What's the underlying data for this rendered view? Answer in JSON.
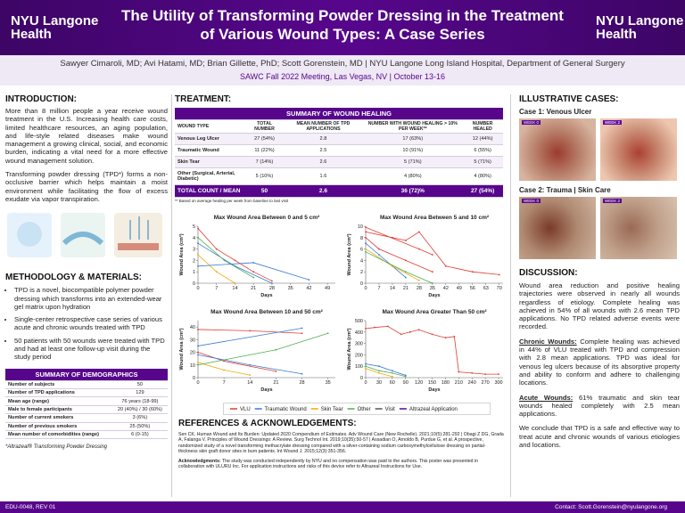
{
  "header": {
    "title": "The Utility of Transforming Powder Dressing in the Treatment of Various Wound Types: A Case Series",
    "logo_line1": "NYU Langone",
    "logo_line2": "Health",
    "authors": "Sawyer Cimaroli, MD; Avi Hatami, MD; Brian Gillette, PhD; Scott Gorenstein, MD | NYU Langone Long Island Hospital, Department of General Surgery",
    "meeting": "SAWC Fall 2022 Meeting, Las Vegas, NV | October 13-16"
  },
  "introduction": {
    "heading": "INTRODUCTION:",
    "paragraphs": [
      "More than 8 million people a year receive wound treatment in the U.S. Increasing health care costs, limited healthcare resources, an aging population, and life-style related diseases make wound management a growing clinical, social, and economic burden, indicating a vital need for a more effective wound management solution.",
      "Transforming powder dressing (TPD*) forms a non-occlusive barrier which helps maintain a moist environment while facilitating the flow of excess exudate via vapor transpiration."
    ]
  },
  "methodology": {
    "heading": "METHODOLOGY & MATERIALS:",
    "bullets": [
      "TPD is a novel, biocompatible polymer powder dressing which transforms into an extended-wear gel matrix upon hydration",
      "Single-center retrospective case series of various acute and chronic wounds treated with TPD",
      "50 patients with 50 wounds were treated with TPD and had at least one follow-up visit during the study period"
    ]
  },
  "demographics": {
    "title": "SUMMARY OF DEMOGRAPHICS",
    "rows": [
      [
        "Number of subjects",
        "50"
      ],
      [
        "Number of TPD applications",
        "129"
      ],
      [
        "Mean age (range)",
        "76 years (18-99)"
      ],
      [
        "Male to female participants",
        "20 (40%) / 30 (60%)"
      ],
      [
        "Number of current smokers",
        "3 (6%)"
      ],
      [
        "Number of previous smokers",
        "25 (50%)"
      ],
      [
        "Mean number of comorbidities (range)",
        "6 (0-15)"
      ]
    ],
    "footnote": "*Altrazeal® Transforming Powder Dressing"
  },
  "treatment": {
    "heading": "TREATMENT:",
    "title": "SUMMARY OF WOUND HEALING",
    "columns": [
      "WOUND TYPE",
      "TOTAL NUMBER",
      "MEAN NUMBER OF TPD APPLICATIONS",
      "NUMBER WITH WOUND HEALING > 10% PER WEEK**",
      "NUMBER HEALED"
    ],
    "rows": [
      [
        "Venous Leg Ulcer",
        "27 (54%)",
        "2.8",
        "17 (63%)",
        "12 (44%)"
      ],
      [
        "Traumatic Wound",
        "11 (22%)",
        "2.5",
        "10 (91%)",
        "6 (55%)"
      ],
      [
        "Skin Tear",
        "7 (14%)",
        "2.6",
        "5 (71%)",
        "5 (71%)"
      ],
      [
        "Other (Surgical, Arterial, Diabetic)",
        "5 (10%)",
        "1.6",
        "4 (80%)",
        "4 (80%)"
      ]
    ],
    "total": [
      "TOTAL COUNT / MEAN",
      "50",
      "2.6",
      "36 (72)%",
      "27 (54%)"
    ],
    "footnote": "** Based on average healing per week from baseline to last visit"
  },
  "chart_data": [
    {
      "type": "line",
      "title": "Max Wound Area Between 0 and 5 cm²",
      "x_label": "Days",
      "y_label": "Wound Area (cm²)",
      "xlim": [
        0,
        52
      ],
      "xticks": [
        0,
        7,
        14,
        21,
        28,
        35,
        42,
        49
      ],
      "ylim": [
        0,
        5
      ],
      "yticks": [
        0,
        1,
        2,
        3,
        4,
        5
      ],
      "series": [
        {
          "color": "#e03c31",
          "x": [
            0,
            7,
            14,
            21,
            28
          ],
          "values": [
            4.8,
            3,
            2,
            1,
            0.2
          ]
        },
        {
          "color": "#3a7bd5",
          "x": [
            0,
            14,
            28
          ],
          "values": [
            3.5,
            1.5,
            0
          ]
        },
        {
          "color": "#f2a900",
          "x": [
            0,
            7,
            14
          ],
          "values": [
            2.5,
            1,
            0
          ]
        },
        {
          "color": "#4caf50",
          "x": [
            0,
            10,
            21
          ],
          "values": [
            4,
            2,
            0.5
          ]
        },
        {
          "color": "#3a7bd5",
          "x": [
            0,
            21,
            42
          ],
          "values": [
            1.5,
            1.8,
            0.3
          ]
        }
      ]
    },
    {
      "type": "line",
      "title": "Max Wound Area Between 5 and 10 cm²",
      "x_label": "Days",
      "y_label": "Wound Area (cm²)",
      "xlim": [
        0,
        72
      ],
      "xticks": [
        0,
        7,
        14,
        21,
        28,
        35,
        42,
        49,
        56,
        63,
        70
      ],
      "ylim": [
        0,
        10
      ],
      "yticks": [
        0,
        2,
        4,
        6,
        8,
        10
      ],
      "series": [
        {
          "color": "#e03c31",
          "x": [
            0,
            14,
            21,
            28,
            42,
            56,
            70
          ],
          "values": [
            9,
            8,
            7.5,
            9,
            3,
            2,
            1.5
          ]
        },
        {
          "color": "#e03c31",
          "x": [
            0,
            7,
            21,
            35
          ],
          "values": [
            8,
            6,
            4,
            2
          ]
        },
        {
          "color": "#3a7bd5",
          "x": [
            0,
            7,
            14,
            21
          ],
          "values": [
            7,
            5,
            3,
            1
          ]
        },
        {
          "color": "#f2a900",
          "x": [
            0,
            14,
            28
          ],
          "values": [
            6,
            3,
            0.5
          ]
        },
        {
          "color": "#4caf50",
          "x": [
            0,
            21,
            35
          ],
          "values": [
            5.5,
            2,
            0
          ]
        },
        {
          "color": "#e03c31",
          "x": [
            0,
            28,
            35
          ],
          "values": [
            9.8,
            6,
            5
          ]
        }
      ]
    },
    {
      "type": "line",
      "title": "Max Wound Area Between 10 and 50 cm²",
      "x_label": "Days",
      "y_label": "Wound Area (cm²)",
      "xlim": [
        0,
        37
      ],
      "xticks": [
        0,
        7,
        14,
        21,
        28,
        35
      ],
      "ylim": [
        0,
        45
      ],
      "yticks": [
        0,
        10,
        20,
        30,
        40
      ],
      "series": [
        {
          "color": "#e03c31",
          "x": [
            0,
            14,
            28
          ],
          "values": [
            38,
            37,
            35
          ]
        },
        {
          "color": "#e03c31",
          "x": [
            0,
            7,
            21
          ],
          "values": [
            20,
            13,
            5
          ]
        },
        {
          "color": "#3a7bd5",
          "x": [
            0,
            14,
            28
          ],
          "values": [
            18,
            10,
            3
          ]
        },
        {
          "color": "#f2a900",
          "x": [
            0,
            7,
            14
          ],
          "values": [
            12,
            6,
            2
          ]
        },
        {
          "color": "#4caf50",
          "x": [
            0,
            21,
            35
          ],
          "values": [
            10,
            22,
            35
          ]
        },
        {
          "color": "#3a7bd5",
          "x": [
            0,
            28
          ],
          "values": [
            25,
            39
          ]
        }
      ]
    },
    {
      "type": "line",
      "title": "Max Wound Area Greater Than 50 cm²",
      "x_label": "Days",
      "y_label": "Wound Area (cm²)",
      "xlim": [
        0,
        310
      ],
      "xticks": [
        0,
        30,
        60,
        90,
        120,
        150,
        180,
        210,
        240,
        270,
        300
      ],
      "ylim": [
        0,
        500
      ],
      "yticks": [
        0,
        100,
        200,
        300,
        400,
        500
      ],
      "series": [
        {
          "color": "#e03c31",
          "x": [
            0,
            20,
            50,
            80,
            100,
            120,
            150,
            180,
            200,
            210,
            240,
            270,
            300
          ],
          "values": [
            430,
            440,
            450,
            380,
            400,
            420,
            380,
            350,
            360,
            50,
            40,
            30,
            30
          ]
        },
        {
          "color": "#3a7bd5",
          "x": [
            0,
            30,
            60,
            90
          ],
          "values": [
            120,
            100,
            60,
            20
          ]
        },
        {
          "color": "#f2a900",
          "x": [
            0,
            30,
            60
          ],
          "values": [
            80,
            40,
            10
          ]
        },
        {
          "color": "#4caf50",
          "x": [
            0,
            30,
            60,
            90
          ],
          "values": [
            100,
            60,
            40,
            10
          ]
        }
      ]
    }
  ],
  "legend": [
    {
      "label": "VLU",
      "color": "#e03c31"
    },
    {
      "label": "Traumatic Wound",
      "color": "#3a7bd5"
    },
    {
      "label": "Skin Tear",
      "color": "#f2a900"
    },
    {
      "label": "Other",
      "color": "#4caf50"
    },
    {
      "label": "Visit",
      "color": "#555555"
    },
    {
      "label": "Altrazeal Application",
      "color": "#57068c"
    }
  ],
  "references": {
    "heading": "REFERENCES & ACKNOWLEDGEMENTS:",
    "text": "Sen CK. Human Wound and Its Burden: Updated 2020 Compendium of Estimates. Adv Wound Care (New Rochelle). 2021;10(5):281-292 | Obagi Z DG, Grada A, Falanga V. Principles of Wound Dressings: A Review. Surg Technol Int. 2019;10(35):50-57 | Assadian O, Arnoldo B, Purdue G, et al. A prospective, randomized study of a novel transforming methacrylate dressing compared with a silver-containing sodium carboxymethylcellulose dressing on partial-thickness skin graft donor sites in burn patients. Int Wound J. 2015;12(3):351-356.",
    "ack_lead": "Acknowledgments:",
    "ack": "The study was conducted independently by NYU and no compensation was paid to the authors. This poster was presented in collaboration with ULURU Inc. For application instructions and risks of this device refer to Altrazeal Instructions for Use."
  },
  "cases": {
    "heading": "ILLUSTRATIVE CASES:",
    "case1": "Case 1: Venous Ulcer",
    "case2": "Case 2: Trauma | Skin Care",
    "week0": "WEEK 0",
    "week2": "WEEK 2"
  },
  "discussion": {
    "heading": "DISCUSSION:",
    "p1": "Wound area reduction and positive healing trajectories were observed in nearly all wounds regardless of etiology. Complete healing was achieved in 54% of all wounds with 2.6 mean TPD applications. No TPD related adverse events were recorded.",
    "chronic_lead": "Chronic Wounds:",
    "chronic": " Complete healing was achieved in 44% of VLU treated with TPD and compression with 2.8 mean applications. TPD was ideal for venous leg ulcers because of its absorptive property and ability to conform and adhere to challenging locations.",
    "acute_lead": "Acute Wounds:",
    "acute": " 61% traumatic and skin tear wounds healed completely with 2.5 mean applications.",
    "conclusion": "We conclude that TPD is a safe and effective way to treat acute and chronic wounds of various etiologies and locations."
  },
  "footer": {
    "code": "EDU-0048, REV 01",
    "contact": "Contact: Scott.Gorenstein@nyulangone.org"
  }
}
